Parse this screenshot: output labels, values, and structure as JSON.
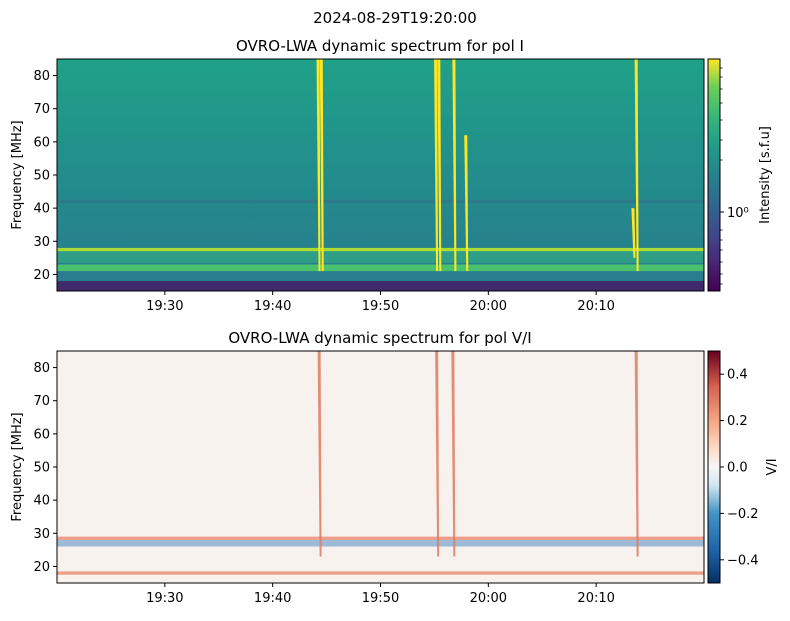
{
  "figure": {
    "suptitle": "2024-08-29T19:20:00"
  },
  "chart_data": [
    {
      "type": "heatmap",
      "title": "OVRO-LWA dynamic spectrum for pol I",
      "xlabel": "",
      "ylabel": "Frequency [MHz]",
      "x_ticks": [
        "19:30",
        "19:40",
        "19:50",
        "20:00",
        "20:10"
      ],
      "x_tick_minutes": [
        10,
        20,
        30,
        40,
        50
      ],
      "xlim_minutes": [
        0,
        60
      ],
      "xlim_labels": [
        "19:20",
        "20:20"
      ],
      "y_ticks": [
        20,
        30,
        40,
        50,
        60,
        70,
        80
      ],
      "ylim": [
        15,
        85
      ],
      "colormap": "viridis",
      "colorbar": {
        "label": "Intensity [s.f.u]",
        "scale": "log",
        "major_tick": "10⁰"
      },
      "horizontal_bands_mhz": [
        [
          15,
          18,
          "low"
        ],
        [
          21,
          23,
          "mid"
        ],
        [
          23.5,
          27,
          "mid-high"
        ],
        [
          27,
          28,
          "high"
        ],
        [
          41.5,
          42.5,
          "dim"
        ]
      ],
      "bursts": [
        {
          "minute": 24.3,
          "top_mhz": 85,
          "bottom_mhz": 21
        },
        {
          "minute": 24.6,
          "top_mhz": 85,
          "bottom_mhz": 21
        },
        {
          "minute": 35.2,
          "top_mhz": 85,
          "bottom_mhz": 21
        },
        {
          "minute": 35.5,
          "top_mhz": 85,
          "bottom_mhz": 21
        },
        {
          "minute": 36.9,
          "top_mhz": 85,
          "bottom_mhz": 21
        },
        {
          "minute": 38.0,
          "top_mhz": 62,
          "bottom_mhz": 21
        },
        {
          "minute": 53.8,
          "top_mhz": 85,
          "bottom_mhz": 21
        },
        {
          "minute": 53.5,
          "top_mhz": 40,
          "bottom_mhz": 25
        }
      ]
    },
    {
      "type": "heatmap",
      "title": "OVRO-LWA dynamic spectrum for pol V/I",
      "xlabel": "",
      "ylabel": "Frequency [MHz]",
      "x_ticks": [
        "19:30",
        "19:40",
        "19:50",
        "20:00",
        "20:10"
      ],
      "x_tick_minutes": [
        10,
        20,
        30,
        40,
        50
      ],
      "xlim_minutes": [
        0,
        60
      ],
      "y_ticks": [
        20,
        30,
        40,
        50,
        60,
        70,
        80
      ],
      "ylim": [
        15,
        85
      ],
      "colormap": "RdBu_r",
      "colorbar": {
        "label": "V/I",
        "range": [
          -0.5,
          0.5
        ],
        "ticks": [
          0.4,
          0.2,
          0.0,
          -0.2,
          -0.4
        ],
        "tick_labels": [
          "0.4",
          "0.2",
          "0.0",
          "−0.2",
          "−0.4"
        ]
      },
      "horizontal_bands_mhz": [
        [
          17.5,
          18.5,
          "red"
        ],
        [
          26,
          28,
          "blue"
        ],
        [
          28,
          29,
          "red"
        ]
      ],
      "bursts": [
        {
          "minute": 24.4,
          "top_mhz": 85,
          "bottom_mhz": 23
        },
        {
          "minute": 35.3,
          "top_mhz": 85,
          "bottom_mhz": 23
        },
        {
          "minute": 36.8,
          "top_mhz": 85,
          "bottom_mhz": 23
        },
        {
          "minute": 53.8,
          "top_mhz": 85,
          "bottom_mhz": 23
        }
      ]
    }
  ]
}
